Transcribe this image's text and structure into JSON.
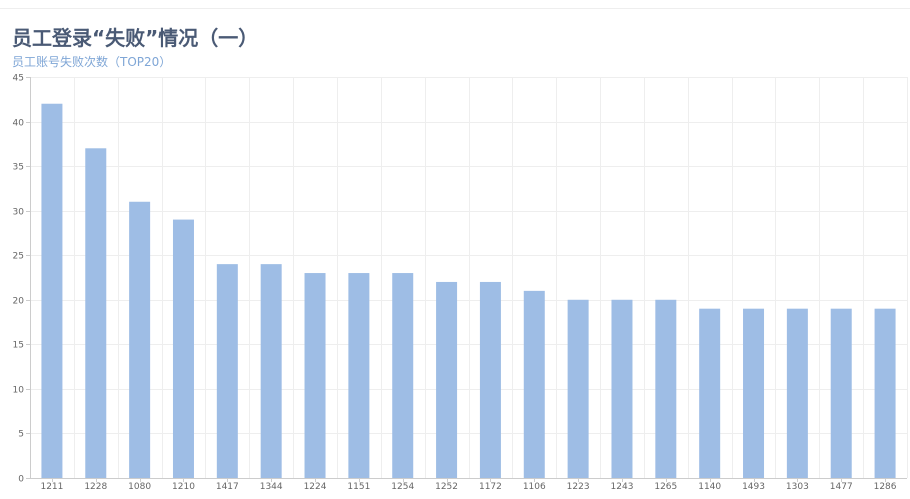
{
  "title": "员工登录“失败”情况（一）",
  "subtitle": "员工账号失败次数（TOP20）",
  "colors": {
    "bar": "#9ebde5",
    "grid": "#eeeeee",
    "axis": "#cccccc",
    "tick_text": "#666666"
  },
  "chart_data": {
    "type": "bar",
    "title": "员工登录“失败”情况（一）",
    "subtitle": "员工账号失败次数（TOP20）",
    "categories": [
      "1211",
      "1228",
      "1080",
      "1210",
      "1417",
      "1344",
      "1224",
      "1151",
      "1254",
      "1252",
      "1172",
      "1106",
      "1223",
      "1243",
      "1265",
      "1140",
      "1493",
      "1303",
      "1477",
      "1286"
    ],
    "values": [
      42,
      37,
      31,
      29,
      24,
      24,
      23,
      23,
      23,
      22,
      22,
      21,
      20,
      20,
      20,
      19,
      19,
      19,
      19,
      19
    ],
    "ylim": [
      0,
      45
    ],
    "yticks": [
      0,
      5,
      10,
      15,
      20,
      25,
      30,
      35,
      40,
      45
    ],
    "xlabel": "",
    "ylabel": "",
    "grid": true,
    "legend": "none"
  }
}
